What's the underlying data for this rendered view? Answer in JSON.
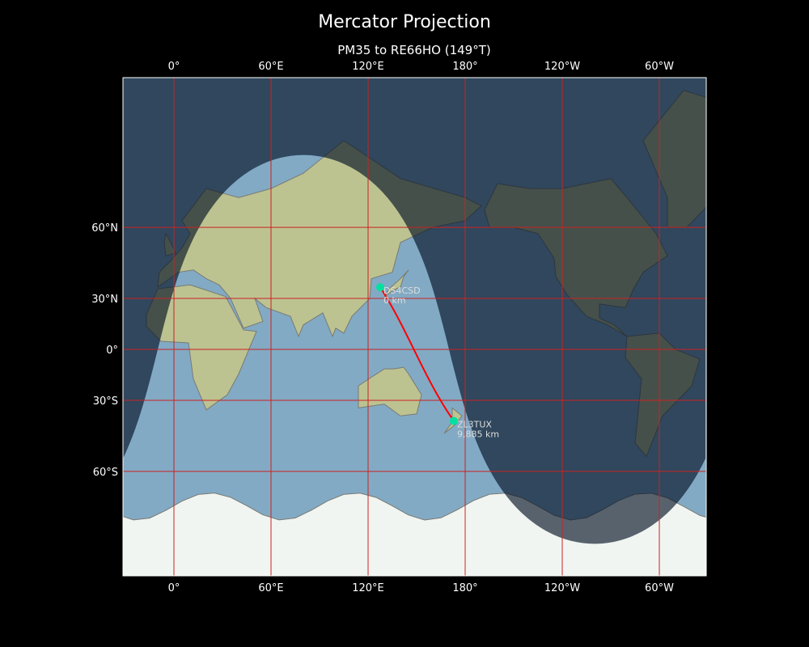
{
  "title": "Mercator Projection",
  "subtitle": "PM35 to RE66HO (149°T)",
  "map": {
    "projection": "mercator",
    "lon_range": [
      -31.5,
      328.5
    ],
    "lat_range": [
      -80,
      84.5
    ],
    "grid_color": "#cc2222",
    "ocean_color": "#5f93bd",
    "land_color": "#a9b27c",
    "night_color": "#1e2a38",
    "path_color": "#ff0000",
    "marker_color": "#00e0a0",
    "subsolar": {
      "lat": -14,
      "lon": 80
    }
  },
  "xticks": [
    {
      "lon": 0,
      "label": "0°"
    },
    {
      "lon": 60,
      "label": "60°E"
    },
    {
      "lon": 120,
      "label": "120°E"
    },
    {
      "lon": 180,
      "label": "180°"
    },
    {
      "lon": 240,
      "label": "120°W"
    },
    {
      "lon": 300,
      "label": "60°W"
    }
  ],
  "yticks": [
    {
      "lat": 60,
      "label": "60°N"
    },
    {
      "lat": 30,
      "label": "30°N"
    },
    {
      "lat": 0,
      "label": "0°"
    },
    {
      "lat": -30,
      "label": "30°S"
    },
    {
      "lat": -60,
      "label": "60°S"
    }
  ],
  "stations": [
    {
      "call": "DS4CSD",
      "distance": "0 km",
      "lat": 35.8,
      "lon": 127.5
    },
    {
      "call": "ZL3TUX",
      "distance": "9,885 km",
      "lat": -40.4,
      "lon": 173
    }
  ]
}
